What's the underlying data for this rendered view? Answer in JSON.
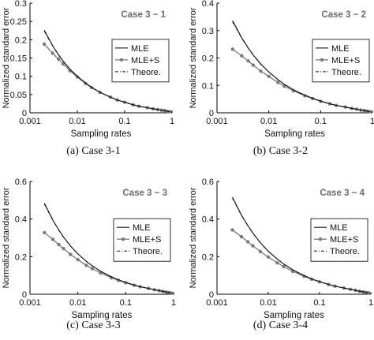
{
  "chart_data": [
    {
      "type": "line",
      "caption": "(a) Case 3-1",
      "annotation": "Case 3 − 1",
      "xlabel": "Sampling rates",
      "ylabel": "Normalized standard error",
      "xscale": "log",
      "xlim": [
        0.001,
        1
      ],
      "ylim": [
        0,
        0.3
      ],
      "xticks": [
        0.001,
        0.01,
        0.1,
        1
      ],
      "xticklabels": [
        "0.001",
        "0.01",
        "0.1",
        "1"
      ],
      "yticks": [
        0,
        0.05,
        0.1,
        0.15,
        0.2,
        0.25,
        0.3
      ],
      "yticklabels": [
        "0",
        "0.05",
        "0.1",
        "0.15",
        "0.2",
        "0.25",
        "0.3"
      ],
      "grid": false,
      "legend_position": "middle-right",
      "x": [
        0.002,
        0.003,
        0.004,
        0.005,
        0.007,
        0.01,
        0.015,
        0.02,
        0.03,
        0.05,
        0.07,
        0.1,
        0.15,
        0.2,
        0.3,
        0.4,
        0.5,
        0.6,
        0.7,
        0.8,
        0.9
      ],
      "series": [
        {
          "name": "MLE",
          "style": "solid",
          "values": [
            0.226,
            0.184,
            0.159,
            0.142,
            0.119,
            0.1,
            0.081,
            0.07,
            0.056,
            0.043,
            0.035,
            0.029,
            0.022,
            0.018,
            0.014,
            0.011,
            0.009,
            0.007,
            0.006,
            0.004,
            0.003
          ]
        },
        {
          "name": "MLE+S",
          "style": "solid-marker",
          "values": [
            0.188,
            0.163,
            0.147,
            0.134,
            0.115,
            0.098,
            0.08,
            0.069,
            0.056,
            0.043,
            0.035,
            0.029,
            0.022,
            0.018,
            0.014,
            0.011,
            0.009,
            0.007,
            0.006,
            0.004,
            0.003
          ]
        },
        {
          "name": "Theore.",
          "style": "dashdot",
          "values": [
            0.224,
            0.183,
            0.158,
            0.141,
            0.119,
            0.1,
            0.081,
            0.07,
            0.056,
            0.043,
            0.035,
            0.029,
            0.022,
            0.018,
            0.014,
            0.011,
            0.009,
            0.007,
            0.006,
            0.004,
            0.003
          ]
        }
      ]
    },
    {
      "type": "line",
      "caption": "(b) Case 3-2",
      "annotation": "Case 3 − 2",
      "xlabel": "Sampling rates",
      "ylabel": "Normalized standard error",
      "xscale": "log",
      "xlim": [
        0.001,
        1
      ],
      "ylim": [
        0,
        0.4
      ],
      "xticks": [
        0.001,
        0.01,
        0.1,
        1
      ],
      "xticklabels": [
        "0.001",
        "0.01",
        "0.1",
        "1"
      ],
      "yticks": [
        0,
        0.1,
        0.2,
        0.3,
        0.4
      ],
      "yticklabels": [
        "0",
        "0.1",
        "0.2",
        "0.3",
        "0.4"
      ],
      "grid": false,
      "legend_position": "middle-right",
      "x": [
        0.002,
        0.003,
        0.004,
        0.005,
        0.007,
        0.01,
        0.015,
        0.02,
        0.03,
        0.05,
        0.07,
        0.1,
        0.15,
        0.2,
        0.3,
        0.4,
        0.5,
        0.6,
        0.7,
        0.8,
        0.9
      ],
      "series": [
        {
          "name": "MLE",
          "style": "solid",
          "values": [
            0.336,
            0.274,
            0.237,
            0.211,
            0.178,
            0.149,
            0.121,
            0.104,
            0.084,
            0.064,
            0.053,
            0.043,
            0.033,
            0.027,
            0.021,
            0.016,
            0.013,
            0.01,
            0.008,
            0.006,
            0.004
          ]
        },
        {
          "name": "MLE+S",
          "style": "solid-marker",
          "values": [
            0.232,
            0.208,
            0.189,
            0.174,
            0.152,
            0.133,
            0.111,
            0.097,
            0.08,
            0.062,
            0.052,
            0.042,
            0.033,
            0.027,
            0.021,
            0.016,
            0.013,
            0.01,
            0.008,
            0.006,
            0.004
          ]
        },
        {
          "name": "Theore.",
          "style": "dashdot",
          "values": [
            0.332,
            0.272,
            0.236,
            0.21,
            0.177,
            0.149,
            0.121,
            0.104,
            0.084,
            0.064,
            0.053,
            0.043,
            0.033,
            0.027,
            0.021,
            0.016,
            0.013,
            0.01,
            0.008,
            0.006,
            0.004
          ]
        }
      ]
    },
    {
      "type": "line",
      "caption": "(c) Case 3-3",
      "annotation": "Case 3 − 3",
      "xlabel": "Sampling rates",
      "ylabel": "Normalized standard error",
      "xscale": "log",
      "xlim": [
        0.001,
        1
      ],
      "ylim": [
        0,
        0.6
      ],
      "xticks": [
        0.001,
        0.01,
        0.1,
        1
      ],
      "xticklabels": [
        "0.001",
        "0.01",
        "0.1",
        "1"
      ],
      "yticks": [
        0,
        0.2,
        0.4,
        0.6
      ],
      "yticklabels": [
        "0",
        "0.2",
        "0.4",
        "0.6"
      ],
      "grid": false,
      "legend_position": "middle-right",
      "x": [
        0.002,
        0.003,
        0.004,
        0.005,
        0.007,
        0.01,
        0.015,
        0.02,
        0.03,
        0.05,
        0.07,
        0.1,
        0.15,
        0.2,
        0.3,
        0.4,
        0.5,
        0.6,
        0.7,
        0.8,
        0.9
      ],
      "series": [
        {
          "name": "MLE",
          "style": "solid",
          "values": [
            0.484,
            0.395,
            0.342,
            0.305,
            0.257,
            0.215,
            0.175,
            0.151,
            0.122,
            0.093,
            0.077,
            0.063,
            0.049,
            0.04,
            0.031,
            0.024,
            0.019,
            0.015,
            0.012,
            0.009,
            0.006
          ]
        },
        {
          "name": "MLE+S",
          "style": "solid-marker",
          "values": [
            0.328,
            0.292,
            0.264,
            0.243,
            0.212,
            0.184,
            0.154,
            0.136,
            0.113,
            0.088,
            0.074,
            0.061,
            0.048,
            0.04,
            0.031,
            0.024,
            0.019,
            0.015,
            0.012,
            0.009,
            0.006
          ]
        },
        {
          "name": "Theore.",
          "style": "dashdot",
          "values": [
            0.48,
            0.393,
            0.341,
            0.304,
            0.256,
            0.215,
            0.175,
            0.151,
            0.122,
            0.093,
            0.077,
            0.063,
            0.049,
            0.04,
            0.031,
            0.024,
            0.019,
            0.015,
            0.012,
            0.009,
            0.006
          ]
        }
      ]
    },
    {
      "type": "line",
      "caption": "(d) Case 3-4",
      "annotation": "Case 3 − 4",
      "xlabel": "Sampling rates",
      "ylabel": "Normalized standard error",
      "xscale": "log",
      "xlim": [
        0.001,
        1
      ],
      "ylim": [
        0,
        0.6
      ],
      "xticks": [
        0.001,
        0.01,
        0.1,
        1
      ],
      "xticklabels": [
        "0.001",
        "0.01",
        "0.1",
        "1"
      ],
      "yticks": [
        0,
        0.2,
        0.4,
        0.6
      ],
      "yticklabels": [
        "0",
        "0.2",
        "0.4",
        "0.6"
      ],
      "grid": false,
      "legend_position": "middle-right",
      "x": [
        0.002,
        0.003,
        0.004,
        0.005,
        0.007,
        0.01,
        0.015,
        0.02,
        0.03,
        0.05,
        0.07,
        0.1,
        0.15,
        0.2,
        0.3,
        0.4,
        0.5,
        0.6,
        0.7,
        0.8,
        0.9
      ],
      "series": [
        {
          "name": "MLE",
          "style": "solid",
          "values": [
            0.516,
            0.421,
            0.365,
            0.326,
            0.274,
            0.229,
            0.187,
            0.161,
            0.13,
            0.099,
            0.082,
            0.067,
            0.052,
            0.043,
            0.033,
            0.026,
            0.021,
            0.016,
            0.013,
            0.01,
            0.007
          ]
        },
        {
          "name": "MLE+S",
          "style": "solid-marker",
          "values": [
            0.342,
            0.306,
            0.279,
            0.258,
            0.227,
            0.198,
            0.167,
            0.147,
            0.122,
            0.095,
            0.08,
            0.066,
            0.052,
            0.043,
            0.033,
            0.026,
            0.021,
            0.016,
            0.013,
            0.01,
            0.007
          ]
        },
        {
          "name": "Theore.",
          "style": "dashdot",
          "values": [
            0.512,
            0.419,
            0.364,
            0.325,
            0.273,
            0.229,
            0.187,
            0.161,
            0.13,
            0.099,
            0.082,
            0.067,
            0.052,
            0.043,
            0.033,
            0.026,
            0.021,
            0.016,
            0.013,
            0.01,
            0.007
          ]
        }
      ]
    }
  ]
}
